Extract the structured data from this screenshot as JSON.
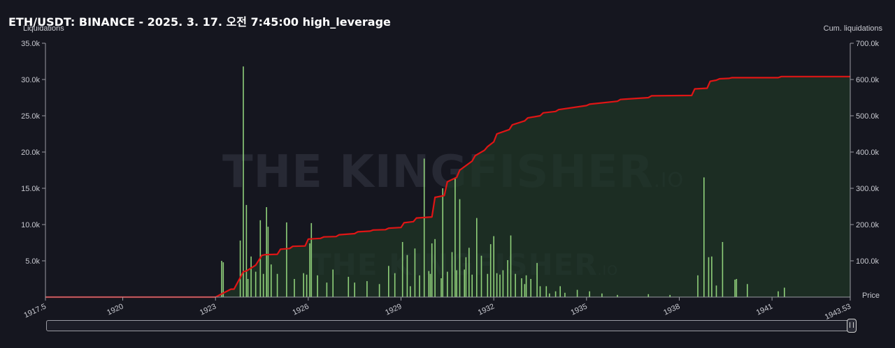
{
  "header": {
    "title": "ETH/USDT: BINANCE - 2025. 3. 17. 오전 7:45:00 high_leverage"
  },
  "watermark": {
    "brand": "THE KINGFISHER",
    "suffix": ".IO"
  },
  "chart_data": {
    "type": "bar",
    "xlabel": "Price",
    "ylabel": "Liquidations",
    "y2label": "Cum. liquidations",
    "xlim": [
      1917.5,
      1943.53
    ],
    "ylim": [
      0,
      35000
    ],
    "y2lim": [
      0,
      700000
    ],
    "x_ticks": [
      "1917.5",
      "1920",
      "1923",
      "1926",
      "1929",
      "1932",
      "1935",
      "1938",
      "1941",
      "1943.53"
    ],
    "x_tick_values": [
      1917.5,
      1920,
      1923,
      1926,
      1929,
      1932,
      1935,
      1938,
      1941,
      1943.53
    ],
    "y_ticks": [
      "5.0k",
      "10.0k",
      "15.0k",
      "20.0k",
      "25.0k",
      "30.0k",
      "35.0k"
    ],
    "y_tick_values": [
      5000,
      10000,
      15000,
      20000,
      25000,
      30000,
      35000
    ],
    "y2_ticks": [
      "100.0k",
      "200.0k",
      "300.0k",
      "400.0k",
      "500.0k",
      "600.0k",
      "700.0k"
    ],
    "y2_tick_values": [
      100000,
      200000,
      300000,
      400000,
      500000,
      600000,
      700000
    ],
    "grid": false,
    "bar_color": "#8fd07a",
    "line_color": "#e01515",
    "area_color": "#1f3526",
    "series": [
      {
        "kind": "bar",
        "x": [
          1923.2,
          1923.25,
          1923.8,
          1923.9,
          1924.0,
          1924.05,
          1924.15,
          1924.3,
          1924.45,
          1924.55,
          1924.65,
          1924.7,
          1924.8,
          1925.0,
          1925.3,
          1925.55,
          1925.85,
          1925.95,
          1926.05,
          1926.1,
          1926.3,
          1926.6,
          1926.8,
          1927.3,
          1927.5,
          1927.9,
          1928.3,
          1928.6,
          1928.8,
          1929.05,
          1929.2,
          1929.3,
          1929.45,
          1929.6,
          1929.75,
          1929.9,
          1929.95,
          1930.0,
          1930.1,
          1930.3,
          1930.35,
          1930.5,
          1930.65,
          1930.75,
          1930.8,
          1930.9,
          1931.05,
          1931.1,
          1931.2,
          1931.3,
          1931.45,
          1931.6,
          1931.8,
          1931.9,
          1932.0,
          1932.1,
          1932.2,
          1932.3,
          1932.45,
          1932.55,
          1932.7,
          1932.9,
          1933.0,
          1933.05,
          1933.2,
          1933.4,
          1933.5,
          1933.7,
          1933.8,
          1934.0,
          1934.15,
          1934.3,
          1934.7,
          1935.1,
          1935.5,
          1936.0,
          1937.0,
          1937.7,
          1938.6,
          1938.8,
          1938.95,
          1939.05,
          1939.2,
          1939.4,
          1939.8,
          1939.85,
          1940.2,
          1941.2,
          1941.4
        ],
        "y": [
          5000,
          4800,
          7800,
          31800,
          12700,
          2500,
          5600,
          3500,
          10600,
          3200,
          12400,
          9700,
          4500,
          3200,
          10300,
          2500,
          3300,
          3100,
          7400,
          10200,
          3000,
          2000,
          3800,
          2800,
          2000,
          2200,
          1800,
          4300,
          3300,
          7600,
          5800,
          1500,
          6700,
          3000,
          19100,
          3600,
          3200,
          7400,
          8000,
          2600,
          15000,
          3500,
          6200,
          16500,
          3700,
          13500,
          3800,
          5500,
          6800,
          3100,
          10900,
          5700,
          3200,
          7300,
          8400,
          3300,
          3100,
          3700,
          5100,
          8500,
          3200,
          2600,
          1800,
          3000,
          2500,
          4700,
          1500,
          1500,
          500,
          800,
          1500,
          600,
          1000,
          800,
          500,
          300,
          400,
          300,
          3000,
          16500,
          5500,
          5600,
          1600,
          7600,
          2400,
          2500,
          1800,
          800,
          1300
        ]
      },
      {
        "kind": "line",
        "name": "Cum. liquidations",
        "x": [
          1917.5,
          1923.0,
          1923.5,
          1923.6,
          1923.9,
          1924.0,
          1924.3,
          1924.5,
          1924.6,
          1925.0,
          1925.1,
          1925.4,
          1925.5,
          1925.9,
          1926.0,
          1926.4,
          1926.5,
          1926.9,
          1927.0,
          1927.5,
          1927.6,
          1928.0,
          1928.1,
          1928.5,
          1928.6,
          1929.0,
          1929.1,
          1929.4,
          1929.5,
          1930.0,
          1930.1,
          1930.4,
          1930.5,
          1930.8,
          1930.9,
          1931.3,
          1931.4,
          1931.7,
          1931.8,
          1932.0,
          1932.1,
          1932.5,
          1932.6,
          1933.0,
          1933.1,
          1933.5,
          1933.6,
          1934.0,
          1934.1,
          1935.0,
          1935.1,
          1936.0,
          1936.1,
          1937.0,
          1937.1,
          1938.4,
          1938.5,
          1938.9,
          1939.0,
          1939.2,
          1939.3,
          1939.6,
          1939.7,
          1941.2,
          1941.3,
          1943.53
        ],
        "y": [
          0,
          0,
          22000,
          22000,
          70000,
          72000,
          88000,
          115000,
          117000,
          118000,
          132000,
          134000,
          140000,
          141000,
          160000,
          162000,
          166000,
          167000,
          172000,
          175000,
          180000,
          182000,
          185000,
          186000,
          190000,
          192000,
          205000,
          208000,
          218000,
          221000,
          275000,
          280000,
          318000,
          330000,
          350000,
          375000,
          390000,
          405000,
          415000,
          428000,
          450000,
          462000,
          475000,
          486000,
          494000,
          500000,
          508000,
          512000,
          517000,
          528000,
          532000,
          540000,
          545000,
          550000,
          555000,
          556000,
          574000,
          576000,
          595000,
          598000,
          602000,
          603000,
          605000,
          605000,
          608000,
          608000
        ]
      }
    ]
  }
}
